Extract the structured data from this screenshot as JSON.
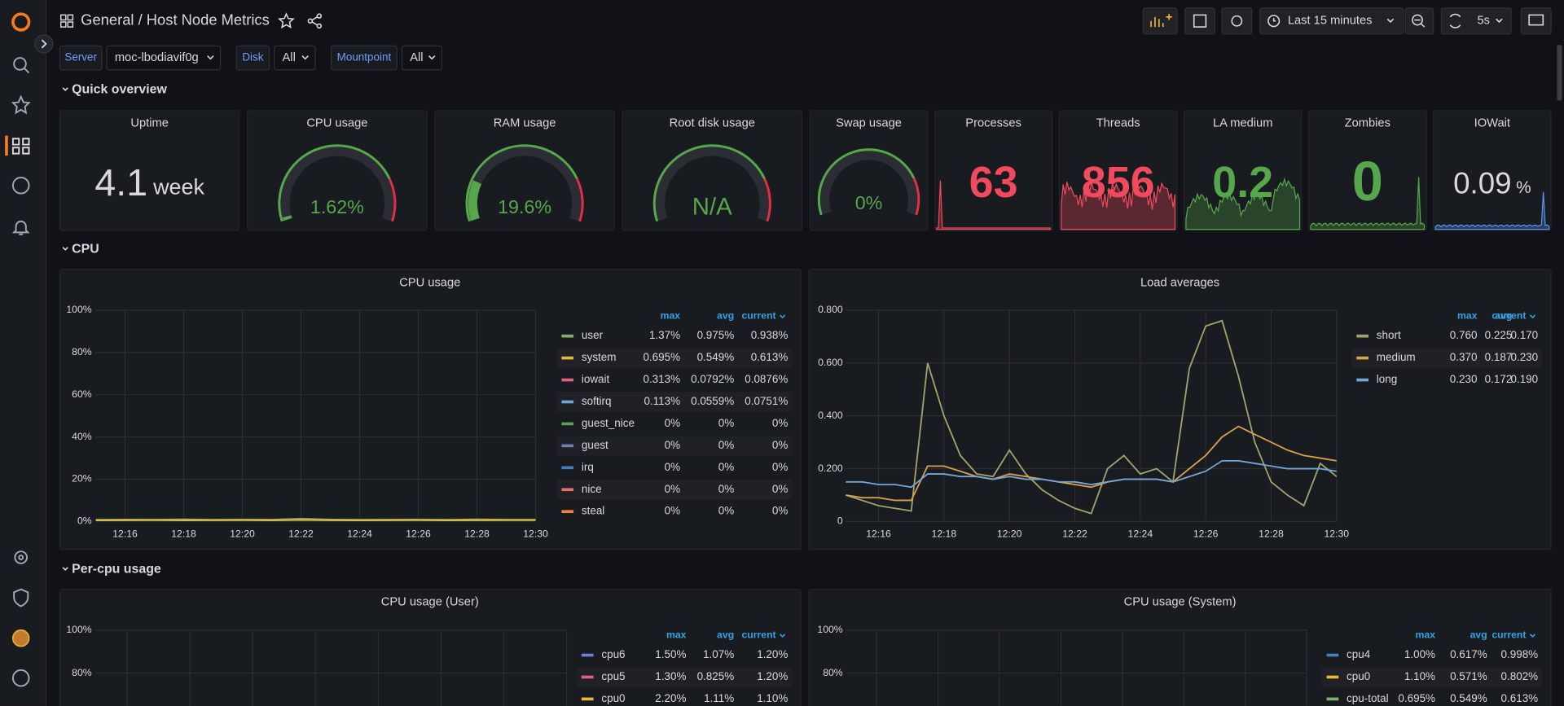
{
  "header": {
    "title": "General / Host Node Metrics",
    "time_range": "Last 15 minutes",
    "refresh": "5s"
  },
  "variables": [
    {
      "label": "Server",
      "value": "moc-lbodiavif0g"
    },
    {
      "label": "Disk",
      "value": "All"
    },
    {
      "label": "Mountpoint",
      "value": "All"
    }
  ],
  "rows": [
    "Quick overview",
    "CPU",
    "Per-cpu usage"
  ],
  "stats": [
    {
      "title": "Uptime",
      "type": "stat",
      "value": "4.1",
      "unit": "week",
      "color": "#d8d9da"
    },
    {
      "title": "CPU usage",
      "type": "gauge",
      "value": 1.62,
      "value_label": "1.62%",
      "ylim": [
        0,
        100
      ],
      "threshold": 80
    },
    {
      "title": "RAM usage",
      "type": "gauge",
      "value": 19.6,
      "value_label": "19.6%",
      "ylim": [
        0,
        100
      ],
      "threshold": 80
    },
    {
      "title": "Root disk usage",
      "type": "gauge",
      "value": null,
      "value_label": "N/A",
      "ylim": [
        0,
        100
      ],
      "threshold": 80
    },
    {
      "title": "Swap usage",
      "type": "gauge",
      "value": 0,
      "value_label": "0%",
      "ylim": [
        0,
        100
      ],
      "threshold": 80
    },
    {
      "title": "Processes",
      "type": "stat",
      "value": "63",
      "color": "#f2495c"
    },
    {
      "title": "Threads",
      "type": "stat",
      "value": "856",
      "color": "#f2495c"
    },
    {
      "title": "LA medium",
      "type": "stat",
      "value": "0.2",
      "color": "#56a64b"
    },
    {
      "title": "Zombies",
      "type": "stat",
      "value": "0",
      "color": "#56a64b"
    },
    {
      "title": "IOWait",
      "type": "stat",
      "value": "0.09",
      "unit": "%",
      "color": "#d8d9da"
    }
  ],
  "charts": [
    {
      "type": "line",
      "title": "CPU usage",
      "ylim": [
        0,
        100
      ],
      "yticks": [
        {
          "value": 0,
          "label": "0%"
        },
        {
          "value": 20,
          "label": "20%"
        },
        {
          "value": 40,
          "label": "40%"
        },
        {
          "value": 60,
          "label": "60%"
        },
        {
          "value": 80,
          "label": "80%"
        },
        {
          "value": 100,
          "label": "100%"
        }
      ],
      "xticks": [
        "12:16",
        "12:18",
        "12:20",
        "12:22",
        "12:24",
        "12:26",
        "12:28",
        "12:30"
      ],
      "legend_columns": [
        "max",
        "avg",
        "current"
      ],
      "series": [
        {
          "name": "user",
          "color": "#7eb26d",
          "max": "1.37%",
          "avg": "0.975%",
          "current": "0.938%",
          "values": [
            0.9,
            1.0,
            0.95,
            1.1,
            0.9,
            1.0,
            0.95,
            1.37,
            1.0,
            0.9,
            0.95,
            1.0,
            0.9,
            1.1,
            0.95,
            0.94
          ]
        },
        {
          "name": "system",
          "color": "#eab839",
          "max": "0.695%",
          "avg": "0.549%",
          "current": "0.613%",
          "values": [
            0.5,
            0.55,
            0.6,
            0.5,
            0.55,
            0.6,
            0.5,
            0.695,
            0.55,
            0.5,
            0.55,
            0.6,
            0.5,
            0.55,
            0.6,
            0.61
          ]
        },
        {
          "name": "iowait",
          "color": "#e0627a",
          "max": "0.313%",
          "avg": "0.0792%",
          "current": "0.0876%"
        },
        {
          "name": "softirq",
          "color": "#70a6dc",
          "max": "0.113%",
          "avg": "0.0559%",
          "current": "0.0751%"
        },
        {
          "name": "guest_nice",
          "color": "#629e51",
          "max": "0%",
          "avg": "0%",
          "current": "0%"
        },
        {
          "name": "guest",
          "color": "#6d7fb6",
          "max": "0%",
          "avg": "0%",
          "current": "0%"
        },
        {
          "name": "irq",
          "color": "#447ebc",
          "max": "0%",
          "avg": "0%",
          "current": "0%"
        },
        {
          "name": "nice",
          "color": "#e86f6f",
          "max": "0%",
          "avg": "0%",
          "current": "0%"
        },
        {
          "name": "steal",
          "color": "#ef843c",
          "max": "0%",
          "avg": "0%",
          "current": "0%"
        }
      ]
    },
    {
      "type": "line",
      "title": "Load averages",
      "ylim": [
        0,
        0.8
      ],
      "yticks": [
        0,
        {
          "value": 0.2,
          "label": "0.200"
        },
        {
          "value": 0.4,
          "label": "0.400"
        },
        {
          "value": 0.6,
          "label": "0.600"
        },
        {
          "value": 0.8,
          "label": "0.800"
        }
      ],
      "xticks": [
        "12:16",
        "12:18",
        "12:20",
        "12:22",
        "12:24",
        "12:26",
        "12:28",
        "12:30"
      ],
      "legend_columns": [
        "max",
        "avg",
        "current"
      ],
      "series": [
        {
          "name": "short",
          "color": "#9fa36b",
          "max": "0.760",
          "avg": "0.225",
          "current": "0.170",
          "values": [
            0.1,
            0.08,
            0.06,
            0.05,
            0.04,
            0.6,
            0.4,
            0.25,
            0.18,
            0.17,
            0.27,
            0.18,
            0.12,
            0.08,
            0.05,
            0.03,
            0.2,
            0.25,
            0.18,
            0.2,
            0.15,
            0.58,
            0.74,
            0.76,
            0.55,
            0.3,
            0.15,
            0.1,
            0.06,
            0.22,
            0.17
          ]
        },
        {
          "name": "medium",
          "color": "#d8a14a",
          "max": "0.370",
          "avg": "0.187",
          "current": "0.230",
          "values": [
            0.1,
            0.09,
            0.09,
            0.08,
            0.08,
            0.21,
            0.21,
            0.19,
            0.17,
            0.16,
            0.18,
            0.17,
            0.16,
            0.15,
            0.14,
            0.13,
            0.15,
            0.16,
            0.16,
            0.16,
            0.15,
            0.2,
            0.25,
            0.32,
            0.36,
            0.33,
            0.3,
            0.27,
            0.25,
            0.24,
            0.23
          ]
        },
        {
          "name": "long",
          "color": "#73a6d6",
          "max": "0.230",
          "avg": "0.172",
          "current": "0.190",
          "values": [
            0.15,
            0.15,
            0.14,
            0.14,
            0.13,
            0.18,
            0.18,
            0.17,
            0.17,
            0.16,
            0.17,
            0.16,
            0.16,
            0.15,
            0.15,
            0.14,
            0.15,
            0.16,
            0.16,
            0.16,
            0.15,
            0.17,
            0.19,
            0.23,
            0.23,
            0.22,
            0.21,
            0.2,
            0.2,
            0.2,
            0.19
          ]
        }
      ]
    },
    {
      "type": "line",
      "title": "CPU usage (User)",
      "ylim": [
        0,
        100
      ],
      "yticks": [
        {
          "value": 80,
          "label": "80%"
        },
        {
          "value": 100,
          "label": "100%"
        }
      ],
      "legend_columns": [
        "max",
        "avg",
        "current"
      ],
      "series": [
        {
          "name": "cpu6",
          "color": "#6d7fd6",
          "max": "1.50%",
          "avg": "1.07%",
          "current": "1.20%"
        },
        {
          "name": "cpu5",
          "color": "#e05f85",
          "max": "1.30%",
          "avg": "0.825%",
          "current": "1.20%"
        },
        {
          "name": "cpu0",
          "color": "#eab839",
          "max": "2.20%",
          "avg": "1.11%",
          "current": "1.10%"
        }
      ]
    },
    {
      "type": "line",
      "title": "CPU usage (System)",
      "ylim": [
        0,
        100
      ],
      "yticks": [
        {
          "value": 80,
          "label": "80%"
        },
        {
          "value": 100,
          "label": "100%"
        }
      ],
      "legend_columns": [
        "max",
        "avg",
        "current"
      ],
      "series": [
        {
          "name": "cpu4",
          "color": "#447ebc",
          "max": "1.00%",
          "avg": "0.617%",
          "current": "0.998%"
        },
        {
          "name": "cpu0",
          "color": "#eab839",
          "max": "1.10%",
          "avg": "0.571%",
          "current": "0.802%"
        },
        {
          "name": "cpu-total",
          "color": "#7eb26d",
          "max": "0.695%",
          "avg": "0.549%",
          "current": "0.613%"
        }
      ]
    }
  ]
}
